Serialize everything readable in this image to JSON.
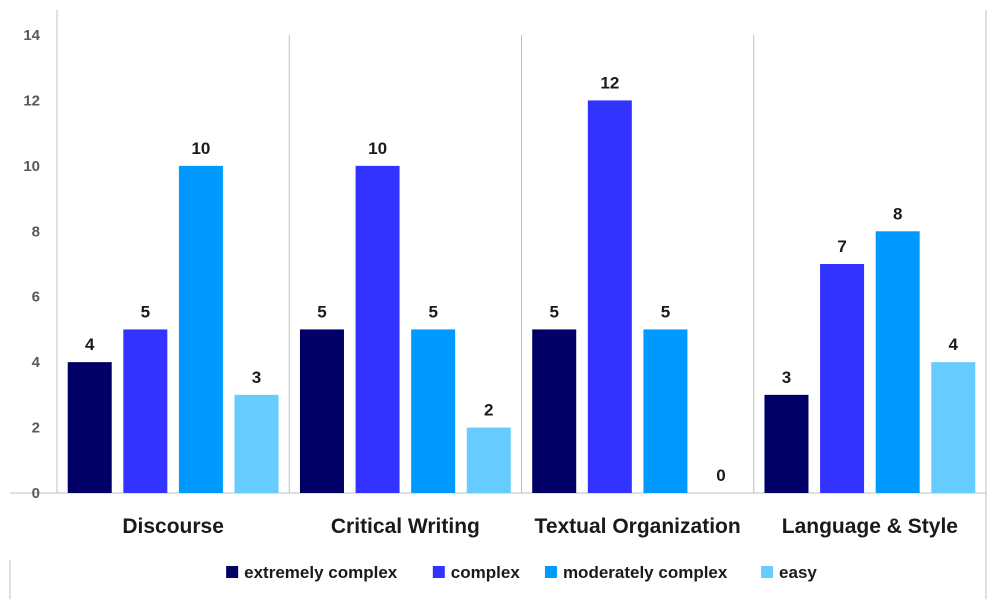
{
  "chart_data": {
    "type": "bar",
    "title": "",
    "xlabel": "",
    "ylabel": "",
    "categories": [
      "Discourse",
      "Critical Writing",
      "Textual Organization",
      "Language & Style"
    ],
    "series": [
      {
        "name": "extremely complex",
        "color": "#000066",
        "values": [
          4,
          5,
          5,
          3
        ]
      },
      {
        "name": "complex",
        "color": "#3333ff",
        "values": [
          5,
          10,
          12,
          7
        ]
      },
      {
        "name": "moderately complex",
        "color": "#0099ff",
        "values": [
          10,
          5,
          5,
          8
        ]
      },
      {
        "name": "easy",
        "color": "#66ccff",
        "values": [
          3,
          2,
          0,
          4
        ]
      }
    ],
    "ylim": [
      0,
      14
    ],
    "yticks": [
      0,
      2,
      4,
      6,
      8,
      10,
      12,
      14
    ],
    "grid": false,
    "category_separators": true,
    "data_labels": true,
    "legend_position": "bottom"
  }
}
